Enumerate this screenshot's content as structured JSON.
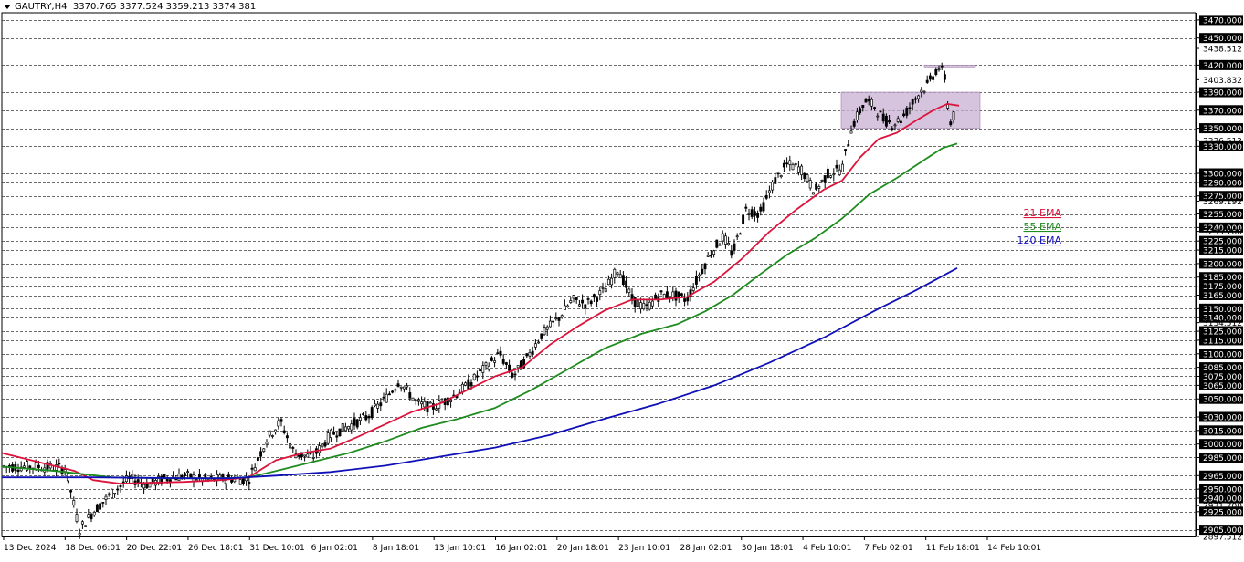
{
  "header": {
    "symbol": "GAUTRY,H4",
    "ohlc": "3370.765 3377.524 3359.213 3374.381"
  },
  "colors": {
    "background": "#ffffff",
    "grid": "#3a3a3a",
    "ema21": "#dc143c",
    "ema55": "#1e8c1e",
    "ema120": "#1010b8",
    "zone": "#c8b0d4",
    "candle": "#000000",
    "axis_box_bg": "#000000",
    "axis_box_text": "#ffffff"
  },
  "chart_data": {
    "type": "line",
    "title": "",
    "timeframe": "H4",
    "y_axis_position": "right",
    "ylim": [
      2897.512,
      3478
    ],
    "grid": "horizontal dashed at labeled levels",
    "price_levels": [
      3470,
      3450,
      3420,
      3390,
      3370,
      3350,
      3330,
      3300,
      3290,
      3275,
      3255,
      3240,
      3225,
      3215,
      3200,
      3185,
      3175,
      3165,
      3150,
      3140,
      3125,
      3115,
      3100,
      3085,
      3075,
      3065,
      3050,
      3030,
      3015,
      3000,
      2985,
      2965,
      2950,
      2940,
      2925,
      2905
    ],
    "y_tick_labels": [
      "3470.000",
      "3450.000",
      "3438.512",
      "3420.000",
      "3403.832",
      "3390.000",
      "3370.000",
      "3350.000",
      "3336.512",
      "3330.000",
      "3300.000",
      "3290.000",
      "3275.000",
      "3269.192",
      "3255.000",
      "3240.000",
      "3235.700",
      "3225.000",
      "3215.000",
      "3200.000",
      "3185.000",
      "3175.000",
      "3165.000",
      "3150.000",
      "3140.000",
      "3134.512",
      "3125.000",
      "3115.000",
      "3100.000",
      "3085.000",
      "3075.000",
      "3065.000",
      "3050.000",
      "3030.000",
      "3015.000",
      "3000.000",
      "2985.000",
      "2965.000",
      "2950.000",
      "2940.000",
      "2931.700",
      "2925.000",
      "2905.000",
      "2897.512"
    ],
    "highlighted_levels": [
      "3470.000",
      "3450.000",
      "3420.000",
      "3390.000",
      "3370.000",
      "3350.000",
      "3330.000",
      "3300.000",
      "3290.000",
      "3275.000",
      "3255.000",
      "3240.000",
      "3225.000",
      "3215.000",
      "3200.000",
      "3185.000",
      "3175.000",
      "3165.000",
      "3150.000",
      "3140.000",
      "3125.000",
      "3115.000",
      "3100.000",
      "3085.000",
      "3075.000",
      "3065.000",
      "3050.000",
      "3030.000",
      "3015.000",
      "3000.000",
      "2985.000",
      "2965.000",
      "2950.000",
      "2940.000",
      "2925.000",
      "2905.000"
    ],
    "x_tick_labels": [
      "13 Dec 2024",
      "18 Dec 06:01",
      "20 Dec 22:01",
      "26 Dec 18:01",
      "31 Dec 10:01",
      "6 Jan 02:01",
      "8 Jan 18:01",
      "13 Jan 10:01",
      "16 Jan 02:01",
      "20 Jan 18:01",
      "23 Jan 10:01",
      "28 Jan 02:01",
      "30 Jan 18:01",
      "4 Feb 10:01",
      "7 Feb 02:01",
      "11 Feb 18:01",
      "14 Feb 10:01"
    ],
    "price_path": [
      [
        0,
        2975
      ],
      [
        40,
        2975
      ],
      [
        70,
        2973
      ],
      [
        85,
        2905
      ],
      [
        100,
        2925
      ],
      [
        120,
        2945
      ],
      [
        140,
        2962
      ],
      [
        160,
        2955
      ],
      [
        180,
        2962
      ],
      [
        200,
        2965
      ],
      [
        225,
        2960
      ],
      [
        250,
        2962
      ],
      [
        270,
        2960
      ],
      [
        290,
        3005
      ],
      [
        305,
        3025
      ],
      [
        320,
        2990
      ],
      [
        340,
        2985
      ],
      [
        360,
        3010
      ],
      [
        380,
        3020
      ],
      [
        400,
        3030
      ],
      [
        420,
        3050
      ],
      [
        435,
        3070
      ],
      [
        455,
        3045
      ],
      [
        470,
        3040
      ],
      [
        490,
        3050
      ],
      [
        510,
        3065
      ],
      [
        530,
        3085
      ],
      [
        545,
        3100
      ],
      [
        560,
        3075
      ],
      [
        575,
        3095
      ],
      [
        590,
        3120
      ],
      [
        610,
        3140
      ],
      [
        625,
        3160
      ],
      [
        640,
        3155
      ],
      [
        660,
        3170
      ],
      [
        675,
        3195
      ],
      [
        690,
        3160
      ],
      [
        705,
        3150
      ],
      [
        720,
        3165
      ],
      [
        735,
        3165
      ],
      [
        750,
        3160
      ],
      [
        760,
        3180
      ],
      [
        775,
        3210
      ],
      [
        790,
        3230
      ],
      [
        800,
        3210
      ],
      [
        815,
        3260
      ],
      [
        830,
        3255
      ],
      [
        845,
        3290
      ],
      [
        860,
        3310
      ],
      [
        875,
        3305
      ],
      [
        890,
        3280
      ],
      [
        905,
        3300
      ],
      [
        920,
        3305
      ],
      [
        930,
        3350
      ],
      [
        945,
        3380
      ],
      [
        955,
        3375
      ],
      [
        965,
        3360
      ],
      [
        975,
        3355
      ],
      [
        985,
        3360
      ],
      [
        995,
        3375
      ],
      [
        1005,
        3390
      ],
      [
        1015,
        3400
      ],
      [
        1025,
        3418
      ],
      [
        1032,
        3410
      ],
      [
        1038,
        3355
      ],
      [
        1045,
        3370
      ]
    ],
    "series": [
      {
        "name": "21 EMA",
        "x": [
          0,
          40,
          80,
          100,
          130,
          160,
          200,
          240,
          270,
          300,
          330,
          360,
          390,
          420,
          450,
          480,
          510,
          540,
          570,
          600,
          630,
          660,
          690,
          720,
          750,
          780,
          810,
          840,
          870,
          900,
          920,
          940,
          960,
          980,
          1000,
          1020,
          1035,
          1048
        ],
        "values": [
          2990,
          2980,
          2970,
          2960,
          2956,
          2957,
          2958,
          2960,
          2963,
          2982,
          2990,
          2995,
          3008,
          3022,
          3036,
          3045,
          3060,
          3075,
          3085,
          3110,
          3130,
          3148,
          3160,
          3160,
          3163,
          3180,
          3205,
          3235,
          3260,
          3282,
          3292,
          3318,
          3338,
          3345,
          3358,
          3370,
          3377,
          3375
        ]
      },
      {
        "name": "55 EMA",
        "x": [
          0,
          60,
          120,
          180,
          240,
          270,
          300,
          340,
          380,
          420,
          460,
          500,
          540,
          580,
          620,
          660,
          700,
          740,
          770,
          800,
          830,
          860,
          890,
          920,
          950,
          980,
          1010,
          1030,
          1046
        ],
        "values": [
          2975,
          2970,
          2963,
          2962,
          2962,
          2963,
          2970,
          2980,
          2990,
          3003,
          3018,
          3028,
          3040,
          3060,
          3083,
          3106,
          3122,
          3133,
          3147,
          3165,
          3188,
          3210,
          3228,
          3250,
          3277,
          3295,
          3315,
          3328,
          3333
        ]
      },
      {
        "name": "120 EMA",
        "x": [
          0,
          100,
          200,
          250,
          300,
          360,
          420,
          480,
          540,
          600,
          660,
          720,
          780,
          840,
          900,
          960,
          1000,
          1046
        ],
        "values": [
          2963,
          2963,
          2962,
          2962,
          2965,
          2969,
          2976,
          2986,
          2996,
          3010,
          3028,
          3045,
          3065,
          3090,
          3118,
          3150,
          3170,
          3195
        ]
      }
    ],
    "legend": [
      "21 EMA",
      "55 EMA",
      "120 EMA"
    ],
    "legend_position": "right, near last bars",
    "zones": [
      {
        "from": 3350,
        "to": 3390,
        "x_start": 919,
        "x_end": 1071
      },
      {
        "from": 3418,
        "to": 3420,
        "x_start": 1010,
        "x_end": 1066
      }
    ]
  }
}
